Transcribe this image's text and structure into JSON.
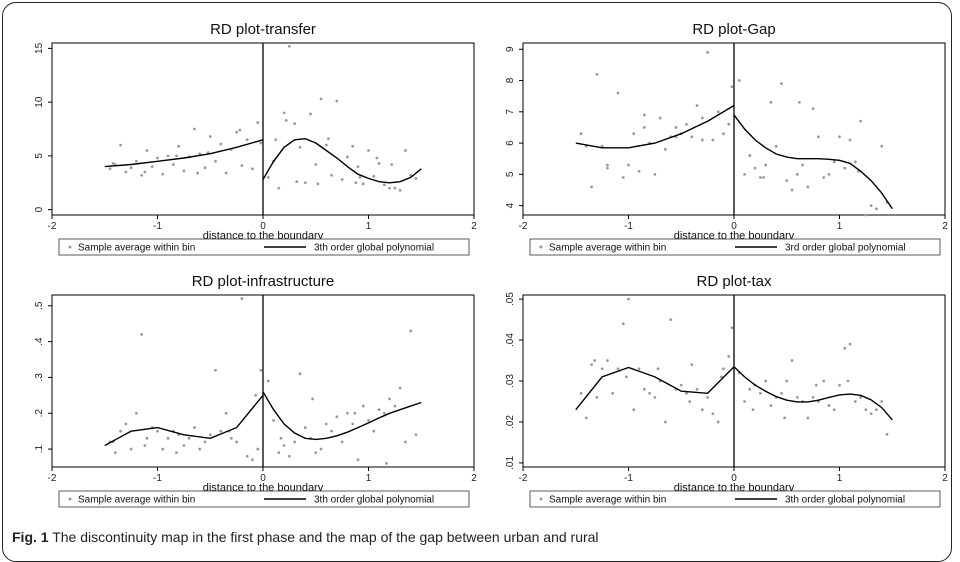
{
  "caption": {
    "label": "Fig. 1",
    "text": " The discontinuity map in the first phase and the map of the gap between urban and rural"
  },
  "colors": {
    "points": "#9a9a9a",
    "line": "#000000"
  },
  "chart_data": [
    {
      "type": "scatter",
      "title": "RD plot-transfer",
      "xlabel": "distance to the boundary",
      "xlim": [
        -2,
        2
      ],
      "ylim": [
        -0.5,
        15.5
      ],
      "xticks": [
        -2,
        -1,
        0,
        1,
        2
      ],
      "yticks": [
        "0",
        "5",
        "10",
        "15"
      ],
      "ytick_values": [
        0,
        5,
        10,
        15
      ],
      "cutoff": 0,
      "legend": [
        "Sample average within bin",
        "3th order global polynomial"
      ],
      "series": [
        {
          "type": "scatter",
          "x": [
            -1.45,
            -1.4,
            -1.35,
            -1.3,
            -1.25,
            -1.2,
            -1.15,
            -1.1,
            -1.05,
            -1.0,
            -0.95,
            -0.9,
            -0.85,
            -0.8,
            -0.75,
            -0.7,
            -0.65,
            -0.6,
            -0.55,
            -0.5,
            -0.45,
            -0.4,
            -0.35,
            -0.3,
            -0.25,
            -0.2,
            -0.15,
            -0.1,
            -0.05,
            -0.02,
            0.05,
            0.1,
            0.15,
            0.2,
            0.25,
            0.3,
            0.35,
            0.4,
            0.45,
            0.5,
            0.55,
            0.6,
            0.65,
            0.7,
            0.75,
            0.8,
            0.85,
            0.9,
            0.95,
            1.0,
            1.05,
            1.1,
            1.15,
            1.2,
            1.25,
            1.3,
            1.35,
            1.4,
            1.45,
            -1.42,
            -1.12,
            -0.82,
            -0.52,
            -0.22,
            0.12,
            0.32,
            0.62,
            0.92,
            1.22,
            -0.62,
            0.22,
            0.52,
            0.88,
            1.08
          ],
          "y": [
            3.8,
            4.2,
            6.0,
            3.5,
            3.9,
            4.5,
            3.2,
            5.5,
            4.0,
            4.8,
            3.3,
            5.0,
            4.2,
            5.9,
            3.6,
            4.9,
            7.5,
            5.2,
            3.9,
            6.8,
            4.5,
            6.1,
            3.4,
            5.6,
            7.2,
            4.1,
            6.5,
            3.8,
            8.1,
            6.2,
            3.0,
            4.5,
            2.0,
            9.0,
            15.2,
            8.0,
            5.8,
            2.5,
            8.9,
            4.2,
            10.3,
            6.0,
            3.2,
            10.1,
            2.8,
            4.9,
            5.9,
            4.0,
            2.4,
            5.5,
            3.1,
            4.3,
            2.3,
            2.0,
            2.0,
            1.8,
            5.5,
            3.2,
            2.9,
            4.3,
            3.5,
            5.0,
            5.3,
            7.4,
            6.5,
            2.6,
            6.6,
            3.0,
            4.2,
            3.4,
            8.3,
            2.4,
            2.5,
            4.8
          ]
        },
        {
          "type": "line",
          "name": "left",
          "x": [
            -1.5,
            -1.25,
            -1.0,
            -0.75,
            -0.5,
            -0.25,
            0.0
          ],
          "y": [
            4.0,
            4.2,
            4.5,
            4.8,
            5.2,
            5.8,
            6.5
          ]
        },
        {
          "type": "line",
          "name": "right",
          "x": [
            0.0,
            0.1,
            0.2,
            0.3,
            0.4,
            0.5,
            0.6,
            0.7,
            0.8,
            0.9,
            1.0,
            1.1,
            1.2,
            1.3,
            1.4,
            1.5
          ],
          "y": [
            2.8,
            4.5,
            5.8,
            6.5,
            6.6,
            6.2,
            5.5,
            4.8,
            4.0,
            3.3,
            2.9,
            2.6,
            2.5,
            2.6,
            3.0,
            3.8
          ]
        }
      ]
    },
    {
      "type": "scatter",
      "title": "RD plot-Gap",
      "xlabel": "distance to the boundary",
      "xlim": [
        -2,
        2
      ],
      "ylim": [
        3.7,
        9.2
      ],
      "xticks": [
        -2,
        -1,
        0,
        1,
        2
      ],
      "yticks": [
        "4",
        "5",
        "6",
        "7",
        "8",
        "9"
      ],
      "ytick_values": [
        4,
        5,
        6,
        7,
        8,
        9
      ],
      "cutoff": 0,
      "legend": [
        "Sample average within bin",
        "3rd order global polynomial"
      ],
      "series": [
        {
          "type": "scatter",
          "x": [
            -1.45,
            -1.35,
            -1.3,
            -1.25,
            -1.2,
            -1.1,
            -1.05,
            -1.0,
            -0.95,
            -0.9,
            -0.85,
            -0.8,
            -0.75,
            -0.7,
            -0.65,
            -0.6,
            -0.55,
            -0.5,
            -0.45,
            -0.4,
            -0.35,
            -0.3,
            -0.25,
            -0.2,
            -0.15,
            -0.1,
            -0.05,
            -0.02,
            0.05,
            0.1,
            0.15,
            0.2,
            0.25,
            0.3,
            0.35,
            0.4,
            0.45,
            0.5,
            0.55,
            0.6,
            0.65,
            0.7,
            0.75,
            0.8,
            0.85,
            0.9,
            0.95,
            1.0,
            1.05,
            1.1,
            1.15,
            1.2,
            1.25,
            1.3,
            1.35,
            1.4,
            1.45,
            -1.4,
            -1.2,
            -0.85,
            -0.55,
            -0.3,
            0.28,
            0.62,
            1.18
          ],
          "y": [
            6.3,
            4.6,
            8.2,
            5.9,
            5.2,
            7.6,
            4.9,
            5.3,
            6.3,
            5.1,
            6.5,
            6.0,
            5.0,
            6.8,
            5.8,
            6.2,
            6.5,
            6.3,
            6.6,
            6.2,
            7.2,
            6.8,
            8.9,
            6.1,
            7.0,
            6.3,
            6.6,
            7.8,
            8.0,
            5.0,
            5.6,
            5.2,
            4.9,
            5.3,
            7.3,
            5.9,
            7.9,
            4.8,
            4.5,
            5.0,
            5.3,
            4.6,
            7.1,
            6.2,
            4.9,
            5.0,
            5.4,
            6.2,
            5.2,
            6.1,
            5.4,
            6.7,
            3.7,
            4.0,
            3.9,
            5.9,
            4.1,
            5.9,
            5.3,
            6.9,
            6.2,
            6.1,
            4.9,
            7.3,
            5.1
          ]
        },
        {
          "type": "line",
          "name": "left",
          "x": [
            -1.5,
            -1.25,
            -1.0,
            -0.75,
            -0.5,
            -0.25,
            0.0
          ],
          "y": [
            6.0,
            5.85,
            5.85,
            6.0,
            6.3,
            6.7,
            7.2
          ]
        },
        {
          "type": "line",
          "name": "right",
          "x": [
            0.0,
            0.1,
            0.2,
            0.3,
            0.4,
            0.5,
            0.6,
            0.7,
            0.8,
            0.9,
            1.0,
            1.1,
            1.2,
            1.3,
            1.4,
            1.5
          ],
          "y": [
            6.9,
            6.45,
            6.1,
            5.85,
            5.65,
            5.55,
            5.5,
            5.5,
            5.5,
            5.48,
            5.45,
            5.35,
            5.1,
            4.8,
            4.4,
            3.9
          ]
        }
      ]
    },
    {
      "type": "scatter",
      "title": "RD plot-infrastructure",
      "xlabel": "distance to the boundary",
      "xlim": [
        -2,
        2
      ],
      "ylim": [
        0.05,
        0.53
      ],
      "xticks": [
        -2,
        -1,
        0,
        1,
        2
      ],
      "yticks": [
        ".1",
        ".2",
        ".3",
        ".4",
        ".5"
      ],
      "ytick_values": [
        0.1,
        0.2,
        0.3,
        0.4,
        0.5
      ],
      "cutoff": 0,
      "legend": [
        "Sample average within bin",
        "3th order global polynomial"
      ],
      "series": [
        {
          "type": "scatter",
          "x": [
            -1.45,
            -1.4,
            -1.35,
            -1.3,
            -1.25,
            -1.2,
            -1.15,
            -1.1,
            -1.05,
            -1.0,
            -0.95,
            -0.9,
            -0.85,
            -0.8,
            -0.75,
            -0.7,
            -0.65,
            -0.6,
            -0.55,
            -0.5,
            -0.45,
            -0.4,
            -0.35,
            -0.3,
            -0.25,
            -0.2,
            -0.15,
            -0.1,
            -0.05,
            -0.02,
            0.05,
            0.1,
            0.15,
            0.2,
            0.25,
            0.3,
            0.35,
            0.4,
            0.45,
            0.5,
            0.55,
            0.6,
            0.65,
            0.7,
            0.75,
            0.8,
            0.85,
            0.9,
            0.95,
            1.0,
            1.05,
            1.1,
            1.15,
            1.2,
            1.25,
            1.3,
            1.35,
            1.4,
            1.45,
            -1.42,
            -1.12,
            -0.82,
            -0.32,
            -0.07,
            0.17,
            0.47,
            0.87,
            1.17
          ],
          "y": [
            0.12,
            0.09,
            0.15,
            0.17,
            0.1,
            0.2,
            0.42,
            0.13,
            0.16,
            0.15,
            0.1,
            0.13,
            0.15,
            0.14,
            0.11,
            0.13,
            0.16,
            0.1,
            0.12,
            0.14,
            0.32,
            0.15,
            0.2,
            0.13,
            0.12,
            0.52,
            0.08,
            0.07,
            0.1,
            0.32,
            0.29,
            0.18,
            0.09,
            0.11,
            0.08,
            0.12,
            0.31,
            0.16,
            0.13,
            0.09,
            0.1,
            0.17,
            0.15,
            0.19,
            0.12,
            0.2,
            0.17,
            0.07,
            0.22,
            0.18,
            0.15,
            0.21,
            0.2,
            0.24,
            0.22,
            0.27,
            0.12,
            0.43,
            0.14,
            0.12,
            0.11,
            0.09,
            0.15,
            0.25,
            0.13,
            0.24,
            0.2,
            0.06
          ]
        },
        {
          "type": "line",
          "name": "left",
          "x": [
            -1.5,
            -1.25,
            -1.0,
            -0.75,
            -0.5,
            -0.25,
            0.0
          ],
          "y": [
            0.11,
            0.15,
            0.16,
            0.14,
            0.13,
            0.16,
            0.25
          ]
        },
        {
          "type": "line",
          "name": "right",
          "x": [
            0.0,
            0.1,
            0.2,
            0.3,
            0.4,
            0.5,
            0.6,
            0.7,
            0.8,
            0.9,
            1.0,
            1.1,
            1.2,
            1.3,
            1.4,
            1.5
          ],
          "y": [
            0.26,
            0.21,
            0.17,
            0.145,
            0.13,
            0.127,
            0.13,
            0.137,
            0.147,
            0.16,
            0.173,
            0.187,
            0.2,
            0.21,
            0.22,
            0.23
          ]
        }
      ]
    },
    {
      "type": "scatter",
      "title": "RD plot-tax",
      "xlabel": "distance to the boundary",
      "xlim": [
        -2,
        2
      ],
      "ylim": [
        0.009,
        0.051
      ],
      "xticks": [
        -2,
        -1,
        0,
        1,
        2
      ],
      "yticks": [
        ".01",
        ".02",
        ".03",
        ".04",
        ".05"
      ],
      "ytick_values": [
        0.01,
        0.02,
        0.03,
        0.04,
        0.05
      ],
      "cutoff": 0,
      "legend": [
        "Sample average within bin",
        "3th order global polynomial"
      ],
      "series": [
        {
          "type": "scatter",
          "x": [
            -1.45,
            -1.4,
            -1.35,
            -1.3,
            -1.25,
            -1.2,
            -1.15,
            -1.1,
            -1.05,
            -1.0,
            -0.95,
            -0.9,
            -0.85,
            -0.8,
            -0.75,
            -0.7,
            -0.65,
            -0.6,
            -0.55,
            -0.5,
            -0.45,
            -0.4,
            -0.35,
            -0.3,
            -0.25,
            -0.2,
            -0.15,
            -0.1,
            -0.05,
            -0.02,
            0.05,
            0.1,
            0.15,
            0.2,
            0.25,
            0.3,
            0.35,
            0.4,
            0.45,
            0.5,
            0.55,
            0.6,
            0.65,
            0.7,
            0.75,
            0.8,
            0.85,
            0.9,
            0.95,
            1.0,
            1.05,
            1.1,
            1.15,
            1.2,
            1.25,
            1.3,
            1.35,
            1.4,
            1.45,
            -1.32,
            -1.02,
            -0.72,
            -0.42,
            -0.12,
            0.18,
            0.48,
            0.78,
            1.08
          ],
          "y": [
            0.027,
            0.021,
            0.034,
            0.026,
            0.033,
            0.035,
            0.027,
            0.033,
            0.044,
            0.05,
            0.023,
            0.033,
            0.028,
            0.027,
            0.026,
            0.03,
            0.02,
            0.045,
            0.028,
            0.029,
            0.027,
            0.034,
            0.028,
            0.023,
            0.026,
            0.022,
            0.02,
            0.033,
            0.036,
            0.043,
            0.032,
            0.025,
            0.028,
            0.029,
            0.027,
            0.03,
            0.024,
            0.026,
            0.027,
            0.03,
            0.035,
            0.026,
            0.025,
            0.021,
            0.026,
            0.025,
            0.03,
            0.024,
            0.023,
            0.029,
            0.038,
            0.039,
            0.025,
            0.026,
            0.023,
            0.022,
            0.023,
            0.025,
            0.017,
            0.035,
            0.031,
            0.033,
            0.025,
            0.031,
            0.023,
            0.021,
            0.029,
            0.03
          ]
        },
        {
          "type": "line",
          "name": "left",
          "x": [
            -1.5,
            -1.25,
            -1.0,
            -0.75,
            -0.5,
            -0.25,
            0.0
          ],
          "y": [
            0.023,
            0.031,
            0.0333,
            0.031,
            0.0275,
            0.027,
            0.0335
          ]
        },
        {
          "type": "line",
          "name": "right",
          "x": [
            0.0,
            0.1,
            0.2,
            0.3,
            0.4,
            0.5,
            0.6,
            0.7,
            0.8,
            0.9,
            1.0,
            1.1,
            1.2,
            1.3,
            1.4,
            1.5
          ],
          "y": [
            0.0335,
            0.031,
            0.029,
            0.0275,
            0.0262,
            0.0253,
            0.0249,
            0.0249,
            0.0253,
            0.026,
            0.0266,
            0.0268,
            0.0265,
            0.0254,
            0.0235,
            0.0205
          ]
        }
      ]
    }
  ]
}
